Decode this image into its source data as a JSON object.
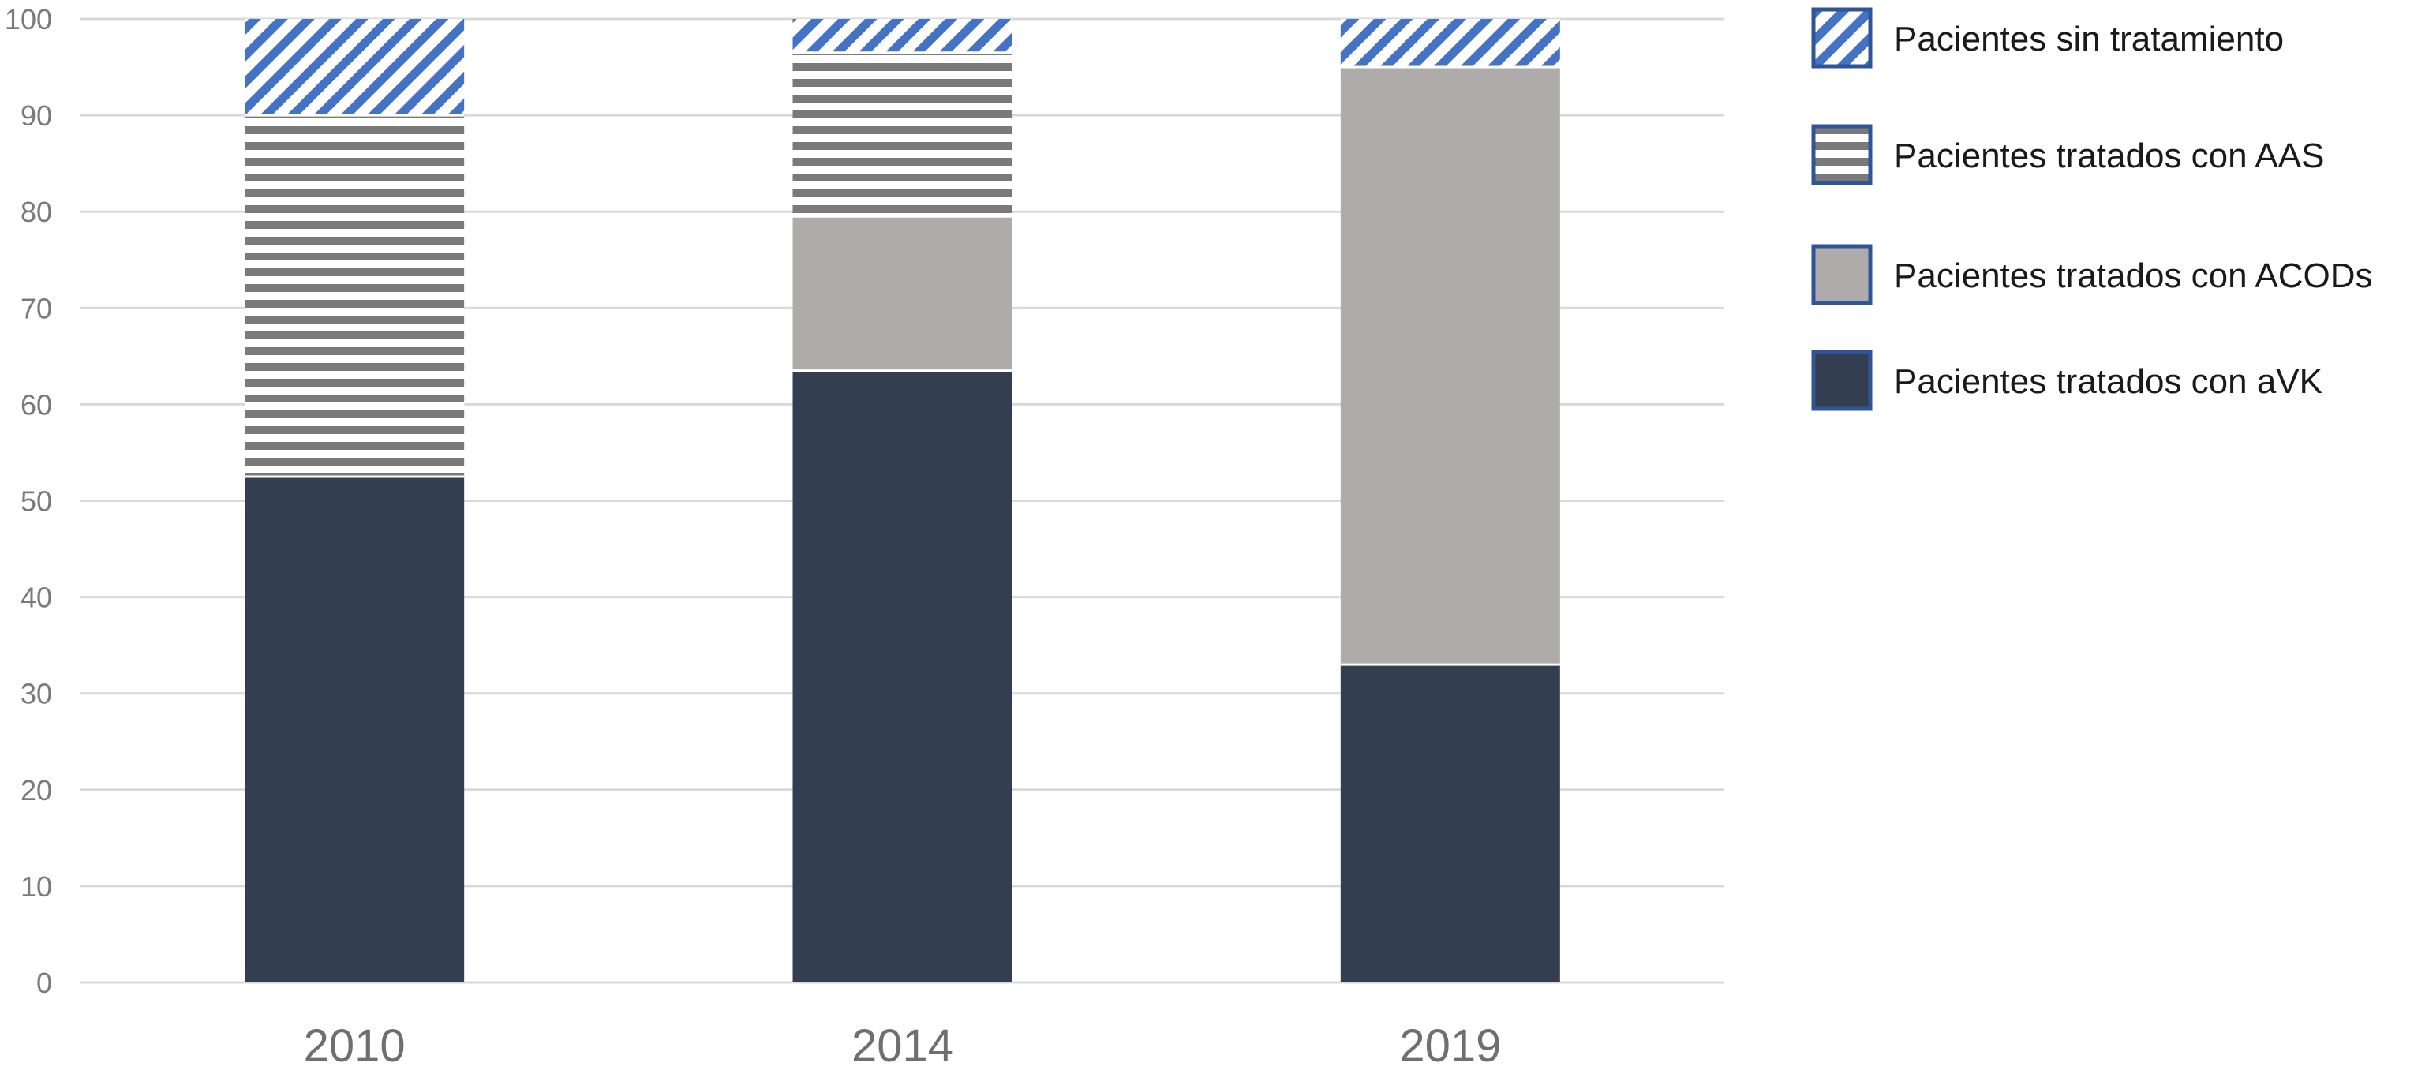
{
  "chart_data": {
    "type": "bar",
    "stacked": true,
    "categories": [
      "2010",
      "2014",
      "2019"
    ],
    "series": [
      {
        "name": "Pacientes tratados con aVK",
        "values": [
          52.5,
          63.5,
          33
        ],
        "color": "#333f50",
        "pattern": "solid"
      },
      {
        "name": "Pacientes tratados con ACODs",
        "values": [
          0,
          16,
          62
        ],
        "color": "#afabab",
        "pattern": "solid"
      },
      {
        "name": "Pacientes tratados con AAS",
        "values": [
          37.5,
          17,
          0
        ],
        "color": "#7a7a7a",
        "pattern": "horizontal-stripes"
      },
      {
        "name": "Pacientes sin tratamiento",
        "values": [
          10,
          3.5,
          5
        ],
        "color": "#4472c4",
        "pattern": "diagonal-stripes"
      }
    ],
    "legend_order": [
      "Pacientes sin tratamiento",
      "Pacientes tratados con AAS",
      "Pacientes tratados con ACODs",
      "Pacientes tratados con aVK"
    ],
    "yticks": [
      0,
      10,
      20,
      30,
      40,
      50,
      60,
      70,
      80,
      90,
      100
    ],
    "ylim": [
      0,
      100
    ],
    "title": "",
    "xlabel": "",
    "ylabel": "",
    "grid": true,
    "legend_position": "right"
  }
}
